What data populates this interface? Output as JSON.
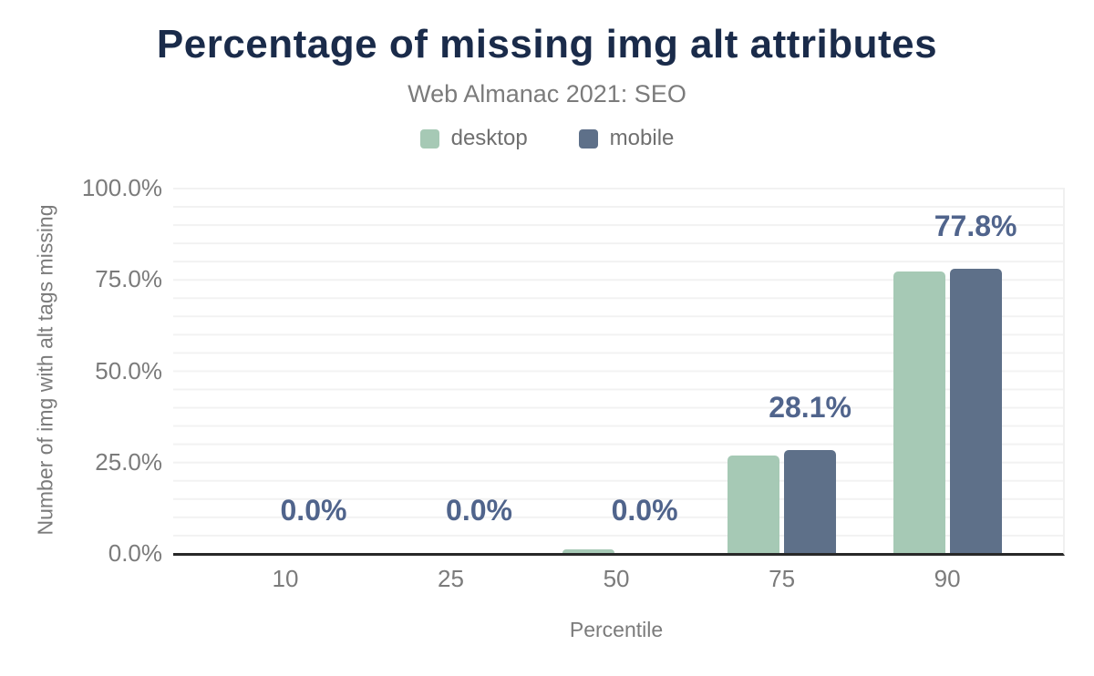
{
  "header": {
    "title": "Percentage of missing img alt attributes",
    "subtitle": "Web Almanac 2021: SEO"
  },
  "legend": {
    "items": [
      {
        "label": "desktop",
        "color": "#a6c9b5"
      },
      {
        "label": "mobile",
        "color": "#5e7089"
      }
    ]
  },
  "chart_data": {
    "type": "bar",
    "title": "Percentage of missing img alt attributes",
    "subtitle": "Web Almanac 2021: SEO",
    "categories": [
      "10",
      "25",
      "50",
      "75",
      "90"
    ],
    "series": [
      {
        "name": "desktop",
        "color": "#a6c9b5",
        "values": [
          0.0,
          0.0,
          1.1,
          26.8,
          77.1
        ]
      },
      {
        "name": "mobile",
        "color": "#5e7089",
        "values": [
          0.0,
          0.0,
          0.0,
          28.1,
          77.8
        ]
      }
    ],
    "data_labels": [
      "0.0%",
      "0.0%",
      "0.0%",
      "28.1%",
      "77.8%"
    ],
    "data_labels_series": "mobile",
    "xlabel": "Percentile",
    "ylabel": "Number of img with alt tags missing",
    "ylim": [
      0,
      100
    ],
    "yticks": [
      "0.0%",
      "25.0%",
      "50.0%",
      "75.0%",
      "100.0%"
    ],
    "ytick_values": [
      0,
      25,
      50,
      75,
      100
    ],
    "grid": "horizontal every 5%",
    "legend_position": "top"
  },
  "colors": {
    "title": "#1a2b4a",
    "muted_text": "#7b7b7b",
    "data_label": "#50648c",
    "gridline": "#f2f2f2",
    "axis_line": "#282828",
    "desktop": "#a6c9b5",
    "mobile": "#5e7089"
  }
}
